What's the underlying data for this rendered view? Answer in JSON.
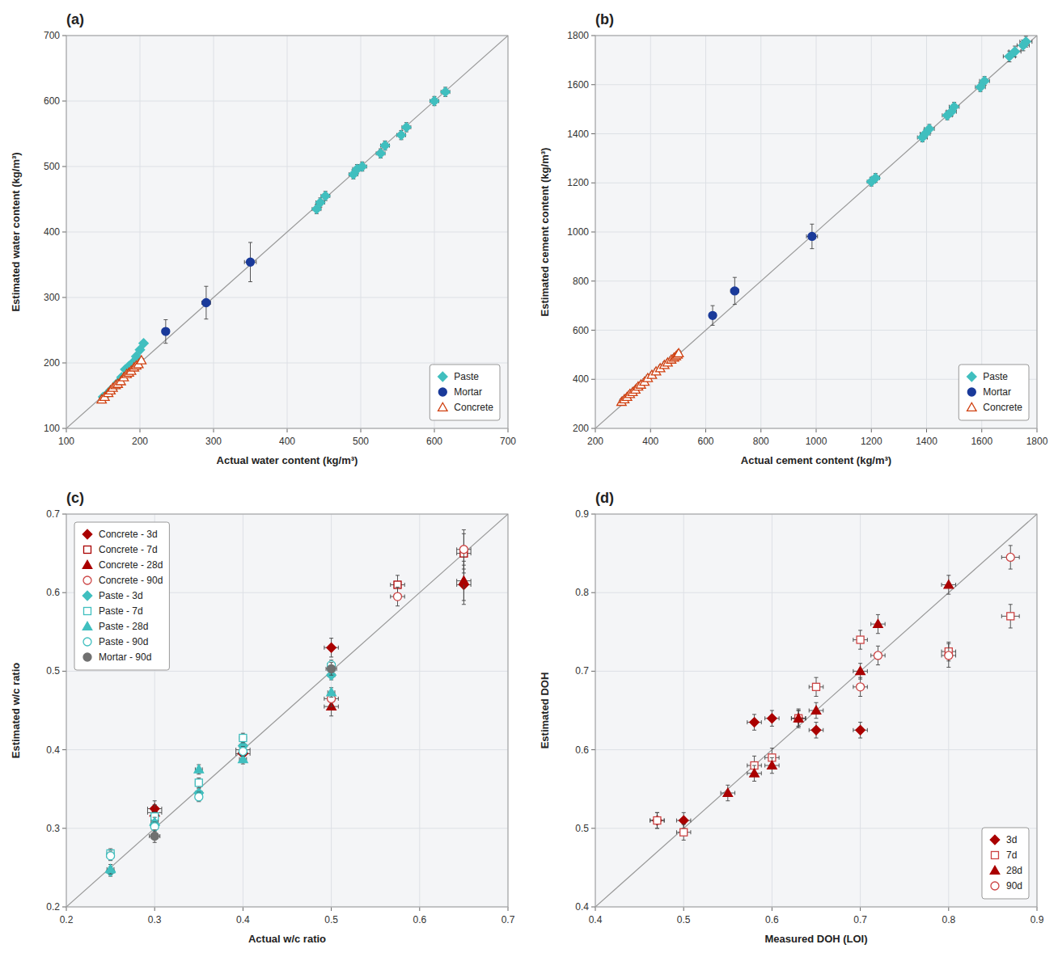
{
  "chart_data": [
    {
      "type": "scatter",
      "title": "(a)",
      "xlabel": "Actual water content (kg/m³)",
      "ylabel": "Estimated water content (kg/m³)",
      "xlim": [
        100,
        700
      ],
      "ylim": [
        100,
        700
      ],
      "xticks": [
        100,
        200,
        300,
        400,
        500,
        600,
        700
      ],
      "yticks": [
        100,
        200,
        300,
        400,
        500,
        600,
        700
      ],
      "grid": true,
      "legend": "lower right",
      "series": [
        {
          "name": "Paste",
          "color": "#40bfbf",
          "marker": "diamond",
          "x": [
            150,
            155,
            160,
            165,
            170,
            175,
            180,
            185,
            190,
            195,
            200,
            205,
            440,
            445,
            452,
            490,
            495,
            502,
            527,
            533,
            555,
            562,
            600,
            615
          ],
          "values": [
            148,
            152,
            158,
            163,
            170,
            178,
            190,
            195,
            200,
            210,
            220,
            230,
            435,
            445,
            455,
            488,
            496,
            500,
            520,
            532,
            548,
            560,
            600,
            614
          ],
          "xerr": [
            3,
            3,
            3,
            3,
            3,
            3,
            3,
            3,
            3,
            3,
            3,
            3,
            6,
            6,
            6,
            6,
            6,
            6,
            6,
            6,
            6,
            6,
            6,
            6
          ],
          "yerr": [
            4,
            4,
            4,
            4,
            4,
            4,
            4,
            4,
            4,
            4,
            4,
            4,
            7,
            7,
            7,
            7,
            7,
            7,
            7,
            7,
            7,
            7,
            7,
            7
          ]
        },
        {
          "name": "Mortar",
          "color": "#1a3a9a",
          "marker": "circle",
          "x": [
            235,
            290,
            350
          ],
          "values": [
            248,
            292,
            354
          ],
          "xerr": [
            5,
            6,
            8
          ],
          "yerr": [
            18,
            25,
            30
          ]
        },
        {
          "name": "Concrete",
          "color": "#d04010",
          "marker": "triangle-open",
          "x": [
            148,
            152,
            157,
            160,
            163,
            167,
            170,
            174,
            178,
            182,
            185,
            188,
            192,
            195,
            198,
            202
          ],
          "values": [
            144,
            148,
            154,
            158,
            162,
            166,
            168,
            172,
            178,
            183,
            185,
            188,
            193,
            196,
            198,
            204
          ],
          "xerr": [
            3,
            3,
            3,
            3,
            3,
            3,
            3,
            3,
            3,
            3,
            3,
            3,
            3,
            3,
            3,
            3
          ],
          "yerr": [
            3,
            3,
            3,
            3,
            3,
            3,
            3,
            3,
            3,
            3,
            3,
            3,
            3,
            3,
            3,
            3
          ]
        }
      ]
    },
    {
      "type": "scatter",
      "title": "(b)",
      "xlabel": "Actual cement content (kg/m³)",
      "ylabel": "Estimated cement content (kg/m³)",
      "xlim": [
        200,
        1800
      ],
      "ylim": [
        200,
        1800
      ],
      "xticks": [
        200,
        400,
        600,
        800,
        1000,
        1200,
        1400,
        1600,
        1800
      ],
      "yticks": [
        200,
        400,
        600,
        800,
        1000,
        1200,
        1400,
        1600,
        1800
      ],
      "grid": true,
      "legend": "lower right",
      "series": [
        {
          "name": "Paste",
          "color": "#40bfbf",
          "marker": "diamond",
          "x": [
            1200,
            1215,
            1385,
            1395,
            1410,
            1475,
            1490,
            1500,
            1595,
            1610,
            1700,
            1720,
            1750,
            1760
          ],
          "values": [
            1205,
            1220,
            1385,
            1400,
            1420,
            1475,
            1490,
            1510,
            1590,
            1615,
            1715,
            1735,
            1760,
            1775
          ],
          "xerr": [
            15,
            15,
            18,
            18,
            18,
            18,
            18,
            18,
            18,
            18,
            22,
            22,
            22,
            22
          ],
          "yerr": [
            18,
            18,
            18,
            18,
            18,
            18,
            18,
            18,
            18,
            18,
            22,
            22,
            22,
            22
          ]
        },
        {
          "name": "Mortar",
          "color": "#1a3a9a",
          "marker": "circle",
          "x": [
            625,
            705,
            985
          ],
          "values": [
            660,
            760,
            982
          ],
          "xerr": [
            12,
            15,
            20
          ],
          "yerr": [
            40,
            55,
            50
          ]
        },
        {
          "name": "Concrete",
          "color": "#d04010",
          "marker": "triangle-open",
          "x": [
            295,
            305,
            315,
            325,
            335,
            345,
            355,
            365,
            378,
            390,
            405,
            420,
            435,
            450,
            462,
            475,
            485,
            492,
            498,
            502
          ],
          "values": [
            308,
            318,
            328,
            340,
            348,
            358,
            370,
            378,
            390,
            405,
            418,
            432,
            445,
            458,
            468,
            480,
            488,
            494,
            500,
            506
          ],
          "xerr": [
            8,
            8,
            8,
            8,
            8,
            8,
            8,
            8,
            8,
            8,
            8,
            8,
            8,
            8,
            8,
            8,
            8,
            8,
            8,
            8
          ],
          "yerr": [
            12,
            12,
            12,
            12,
            12,
            12,
            12,
            12,
            12,
            12,
            12,
            12,
            12,
            12,
            12,
            12,
            12,
            12,
            12,
            12
          ]
        }
      ]
    },
    {
      "type": "scatter",
      "title": "(c)",
      "xlabel": "Actual w/c ratio",
      "ylabel": "Estimated w/c ratio",
      "xlim": [
        0.2,
        0.7
      ],
      "ylim": [
        0.2,
        0.7
      ],
      "xticks": [
        0.2,
        0.3,
        0.4,
        0.5,
        0.6,
        0.7
      ],
      "yticks": [
        0.2,
        0.3,
        0.4,
        0.5,
        0.6,
        0.7
      ],
      "grid": true,
      "legend": "upper left",
      "series": [
        {
          "name": "Concrete - 3d",
          "color": "#aa0000",
          "marker": "diamond",
          "x": [
            0.3,
            0.4,
            0.5,
            0.65
          ],
          "values": [
            0.325,
            0.395,
            0.53,
            0.61
          ],
          "xerr": [
            0.008,
            0.008,
            0.008,
            0.008
          ],
          "yerr": [
            0.01,
            0.01,
            0.012,
            0.025
          ]
        },
        {
          "name": "Concrete - 7d",
          "color": "#aa0000",
          "marker": "square-open",
          "x": [
            0.575,
            0.65
          ],
          "values": [
            0.61,
            0.65
          ],
          "xerr": [
            0.008,
            0.008
          ],
          "yerr": [
            0.012,
            0.025
          ]
        },
        {
          "name": "Concrete - 28d",
          "color": "#aa0000",
          "marker": "triangle",
          "x": [
            0.3,
            0.4,
            0.5,
            0.65
          ],
          "values": [
            0.32,
            0.4,
            0.455,
            0.615
          ],
          "xerr": [
            0.008,
            0.008,
            0.008,
            0.008
          ],
          "yerr": [
            0.01,
            0.01,
            0.012,
            0.025
          ]
        },
        {
          "name": "Concrete - 90d",
          "color": "#cc4444",
          "marker": "circle-open",
          "x": [
            0.5,
            0.575,
            0.65
          ],
          "values": [
            0.465,
            0.595,
            0.655
          ],
          "xerr": [
            0.008,
            0.008,
            0.008
          ],
          "yerr": [
            0.01,
            0.012,
            0.025
          ]
        },
        {
          "name": "Paste - 3d",
          "color": "#40bfbf",
          "marker": "diamond",
          "x": [
            0.25,
            0.3,
            0.35,
            0.4,
            0.5
          ],
          "values": [
            0.245,
            0.305,
            0.345,
            0.405,
            0.495
          ],
          "xerr": [
            0.004,
            0.004,
            0.004,
            0.004,
            0.004
          ],
          "yerr": [
            0.006,
            0.006,
            0.006,
            0.006,
            0.006
          ]
        },
        {
          "name": "Paste - 7d",
          "color": "#40bfbf",
          "marker": "square-open",
          "x": [
            0.25,
            0.3,
            0.35,
            0.4,
            0.5
          ],
          "values": [
            0.268,
            0.315,
            0.358,
            0.415,
            0.505
          ],
          "xerr": [
            0.004,
            0.004,
            0.004,
            0.004,
            0.004
          ],
          "yerr": [
            0.006,
            0.006,
            0.006,
            0.006,
            0.006
          ]
        },
        {
          "name": "Paste - 28d",
          "color": "#40bfbf",
          "marker": "triangle",
          "x": [
            0.25,
            0.3,
            0.35,
            0.4,
            0.5
          ],
          "values": [
            0.248,
            0.308,
            0.375,
            0.388,
            0.473
          ],
          "xerr": [
            0.004,
            0.004,
            0.004,
            0.004,
            0.004
          ],
          "yerr": [
            0.006,
            0.006,
            0.006,
            0.006,
            0.006
          ]
        },
        {
          "name": "Paste - 90d",
          "color": "#40bfbf",
          "marker": "circle-open",
          "x": [
            0.25,
            0.3,
            0.35,
            0.4,
            0.5
          ],
          "values": [
            0.265,
            0.302,
            0.34,
            0.398,
            0.508
          ],
          "xerr": [
            0.004,
            0.004,
            0.004,
            0.004,
            0.004
          ],
          "yerr": [
            0.006,
            0.006,
            0.006,
            0.006,
            0.006
          ]
        },
        {
          "name": "Mortar - 90d",
          "color": "#707070",
          "marker": "circle",
          "x": [
            0.3,
            0.5
          ],
          "values": [
            0.29,
            0.503
          ],
          "xerr": [
            0.006,
            0.006
          ],
          "yerr": [
            0.008,
            0.008
          ]
        }
      ]
    },
    {
      "type": "scatter",
      "title": "(d)",
      "xlabel": "Measured DOH (LOI)",
      "ylabel": "Estimated DOH",
      "xlim": [
        0.4,
        0.9
      ],
      "ylim": [
        0.4,
        0.9
      ],
      "xticks": [
        0.4,
        0.5,
        0.6,
        0.7,
        0.8,
        0.9
      ],
      "yticks": [
        0.4,
        0.5,
        0.6,
        0.7,
        0.8,
        0.9
      ],
      "grid": true,
      "legend": "lower right",
      "series": [
        {
          "name": "3d",
          "color": "#aa0000",
          "marker": "diamond",
          "x": [
            0.47,
            0.5,
            0.58,
            0.6,
            0.63,
            0.65,
            0.7
          ],
          "values": [
            0.51,
            0.51,
            0.635,
            0.64,
            0.64,
            0.625,
            0.625
          ],
          "xerr": [
            0.008,
            0.008,
            0.008,
            0.008,
            0.008,
            0.008,
            0.008
          ],
          "yerr": [
            0.01,
            0.01,
            0.01,
            0.01,
            0.01,
            0.01,
            0.01
          ]
        },
        {
          "name": "7d",
          "color": "#cc4444",
          "marker": "square-open",
          "x": [
            0.47,
            0.5,
            0.58,
            0.6,
            0.63,
            0.65,
            0.7,
            0.8,
            0.87
          ],
          "values": [
            0.51,
            0.495,
            0.58,
            0.59,
            0.64,
            0.68,
            0.74,
            0.725,
            0.77
          ],
          "xerr": [
            0.008,
            0.008,
            0.008,
            0.008,
            0.008,
            0.008,
            0.008,
            0.008,
            0.01
          ],
          "yerr": [
            0.01,
            0.01,
            0.012,
            0.012,
            0.012,
            0.012,
            0.012,
            0.012,
            0.015
          ]
        },
        {
          "name": "28d",
          "color": "#aa0000",
          "marker": "triangle",
          "x": [
            0.55,
            0.58,
            0.6,
            0.63,
            0.65,
            0.7,
            0.72,
            0.8
          ],
          "values": [
            0.545,
            0.57,
            0.58,
            0.64,
            0.65,
            0.7,
            0.76,
            0.81
          ],
          "xerr": [
            0.008,
            0.008,
            0.008,
            0.008,
            0.008,
            0.008,
            0.008,
            0.008
          ],
          "yerr": [
            0.01,
            0.01,
            0.01,
            0.01,
            0.01,
            0.01,
            0.012,
            0.012
          ]
        },
        {
          "name": "90d",
          "color": "#cc4444",
          "marker": "circle-open",
          "x": [
            0.7,
            0.72,
            0.8,
            0.87
          ],
          "values": [
            0.68,
            0.72,
            0.72,
            0.845
          ],
          "xerr": [
            0.008,
            0.008,
            0.008,
            0.01
          ],
          "yerr": [
            0.012,
            0.012,
            0.015,
            0.015
          ]
        }
      ]
    }
  ]
}
